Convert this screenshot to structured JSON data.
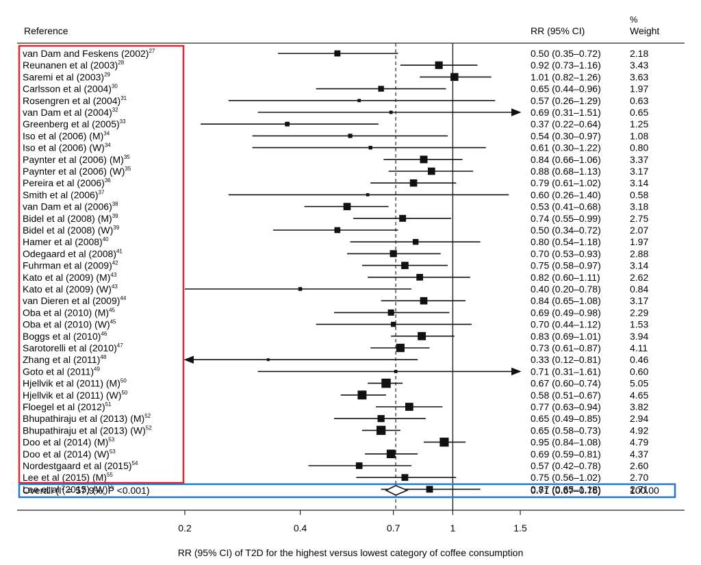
{
  "headers": {
    "reference": "Reference",
    "rr": "RR (95% CI)",
    "weight_pct": "%",
    "weight": "Weight"
  },
  "chart_data": {
    "type": "forest",
    "xlabel": "RR (95% CI) of T2D for the highest versus lowest category of coffee consumption",
    "x_scale": "log",
    "x_ticks": [
      0.2,
      0.4,
      0.7,
      1,
      1.5
    ],
    "x_tick_labels": [
      "0.2",
      "0.4",
      "0.7",
      "1",
      "1.5"
    ],
    "xlim": [
      0.15,
      1.75
    ],
    "null_value": 1,
    "pooled_estimate_line": 0.71,
    "colors": {
      "highlight_refs": "#e8232a",
      "highlight_overall": "#1f78c8",
      "marks": "#111111"
    },
    "studies": [
      {
        "label": "van Dam and Feskens (2002)",
        "sup": "27",
        "rr": 0.5,
        "lo": 0.35,
        "hi": 0.72,
        "ci_text": "0.50 (0.35–0.72)",
        "weight": "2.18"
      },
      {
        "label": "Reunanen et al (2003)",
        "sup": "28",
        "rr": 0.92,
        "lo": 0.73,
        "hi": 1.16,
        "ci_text": "0.92 (0.73–1.16)",
        "weight": "3.43"
      },
      {
        "label": "Saremi et al (2003)",
        "sup": "29",
        "rr": 1.01,
        "lo": 0.82,
        "hi": 1.26,
        "ci_text": "1.01 (0.82–1.26)",
        "weight": "3.63"
      },
      {
        "label": "Carlsson et al (2004)",
        "sup": "30",
        "rr": 0.65,
        "lo": 0.44,
        "hi": 0.96,
        "ci_text": "0.65 (0.44–0.96)",
        "weight": "1.97"
      },
      {
        "label": "Rosengren et al (2004)",
        "sup": "31",
        "rr": 0.57,
        "lo": 0.26,
        "hi": 1.29,
        "ci_text": "0.57 (0.26–1.29)",
        "weight": "0.63"
      },
      {
        "label": "van Dam et al (2004)",
        "sup": "32",
        "rr": 0.69,
        "lo": 0.31,
        "hi": 1.51,
        "ci_text": "0.69 (0.31–1.51)",
        "weight": "0.65"
      },
      {
        "label": "Greenberg et al (2005)",
        "sup": "33",
        "rr": 0.37,
        "lo": 0.22,
        "hi": 0.64,
        "ci_text": "0.37 (0.22–0.64)",
        "weight": "1.25"
      },
      {
        "label": "Iso et al (2006) (M)",
        "sup": "34",
        "rr": 0.54,
        "lo": 0.3,
        "hi": 0.97,
        "ci_text": "0.54 (0.30–0.97)",
        "weight": "1.08"
      },
      {
        "label": "Iso et al (2006) (W)",
        "sup": "34",
        "rr": 0.61,
        "lo": 0.3,
        "hi": 1.22,
        "ci_text": "0.61 (0.30–1.22)",
        "weight": "0.80"
      },
      {
        "label": "Paynter et al (2006) (M)",
        "sup": "35",
        "rr": 0.84,
        "lo": 0.66,
        "hi": 1.06,
        "ci_text": "0.84 (0.66–1.06)",
        "weight": "3.37"
      },
      {
        "label": "Paynter et al (2006) (W)",
        "sup": "35",
        "rr": 0.88,
        "lo": 0.68,
        "hi": 1.13,
        "ci_text": "0.88 (0.68–1.13)",
        "weight": "3.17"
      },
      {
        "label": "Pereira et al (2006)",
        "sup": "36",
        "rr": 0.79,
        "lo": 0.61,
        "hi": 1.02,
        "ci_text": "0.79 (0.61–1.02)",
        "weight": "3.14"
      },
      {
        "label": "Smith et al (2006)",
        "sup": "37",
        "rr": 0.6,
        "lo": 0.26,
        "hi": 1.4,
        "ci_text": "0.60 (0.26–1.40)",
        "weight": "0.58"
      },
      {
        "label": "van Dam et al (2006)",
        "sup": "38",
        "rr": 0.53,
        "lo": 0.41,
        "hi": 0.68,
        "ci_text": "0.53 (0.41–0.68)",
        "weight": "3.18"
      },
      {
        "label": "Bidel et al (2008) (M)",
        "sup": "39",
        "rr": 0.74,
        "lo": 0.55,
        "hi": 0.99,
        "ci_text": "0.74 (0.55–0.99)",
        "weight": "2.75"
      },
      {
        "label": "Bidel et al (2008) (W)",
        "sup": "39",
        "rr": 0.5,
        "lo": 0.34,
        "hi": 0.72,
        "ci_text": "0.50 (0.34–0.72)",
        "weight": "2.07"
      },
      {
        "label": "Hamer et al (2008)",
        "sup": "40",
        "rr": 0.8,
        "lo": 0.54,
        "hi": 1.18,
        "ci_text": "0.80 (0.54–1.18)",
        "weight": "1.97"
      },
      {
        "label": "Odegaard et al (2008)",
        "sup": "41",
        "rr": 0.7,
        "lo": 0.53,
        "hi": 0.93,
        "ci_text": "0.70 (0.53–0.93)",
        "weight": "2.88"
      },
      {
        "label": "Fuhrman et al (2009)",
        "sup": "42",
        "rr": 0.75,
        "lo": 0.58,
        "hi": 0.97,
        "ci_text": "0.75 (0.58–0.97)",
        "weight": "3.14"
      },
      {
        "label": "Kato et al (2009) (M)",
        "sup": "43",
        "rr": 0.82,
        "lo": 0.6,
        "hi": 1.11,
        "ci_text": "0.82 (0.60–1.11)",
        "weight": "2.62"
      },
      {
        "label": "Kato et al (2009) (W)",
        "sup": "43",
        "rr": 0.4,
        "lo": 0.2,
        "hi": 0.78,
        "ci_text": "0.40 (0.20–0.78)",
        "weight": "0.84"
      },
      {
        "label": "van Dieren et al (2009)",
        "sup": "44",
        "rr": 0.84,
        "lo": 0.65,
        "hi": 1.08,
        "ci_text": "0.84 (0.65–1.08)",
        "weight": "3.17"
      },
      {
        "label": "Oba et al (2010) (M)",
        "sup": "45",
        "rr": 0.69,
        "lo": 0.49,
        "hi": 0.98,
        "ci_text": "0.69 (0.49–0.98)",
        "weight": "2.29"
      },
      {
        "label": "Oba et al (2010) (W)",
        "sup": "45",
        "rr": 0.7,
        "lo": 0.44,
        "hi": 1.12,
        "ci_text": "0.70 (0.44–1.12)",
        "weight": "1.53"
      },
      {
        "label": "Boggs et al (2010)",
        "sup": "46",
        "rr": 0.83,
        "lo": 0.69,
        "hi": 1.01,
        "ci_text": "0.83 (0.69–1.01)",
        "weight": "3.94"
      },
      {
        "label": "Sarotorelli et al (2010)",
        "sup": "47",
        "rr": 0.73,
        "lo": 0.61,
        "hi": 0.87,
        "ci_text": "0.73 (0.61–0.87)",
        "weight": "4.11"
      },
      {
        "label": "Zhang et al (2011)",
        "sup": "48",
        "rr": 0.33,
        "lo": 0.12,
        "hi": 0.81,
        "ci_text": "0.33 (0.12–0.81)",
        "weight": "0.46"
      },
      {
        "label": "Goto et al (2011)",
        "sup": "49",
        "rr": 0.71,
        "lo": 0.31,
        "hi": 1.61,
        "ci_text": "0.71 (0.31–1.61)",
        "weight": "0.60"
      },
      {
        "label": "Hjellvik et al (2011) (M)",
        "sup": "50",
        "rr": 0.67,
        "lo": 0.6,
        "hi": 0.74,
        "ci_text": "0.67 (0.60–0.74)",
        "weight": "5.05"
      },
      {
        "label": "Hjellvik et al (2011) (W)",
        "sup": "50",
        "rr": 0.58,
        "lo": 0.51,
        "hi": 0.67,
        "ci_text": "0.58 (0.51–0.67)",
        "weight": "4.65"
      },
      {
        "label": "Floegel et al (2012)",
        "sup": "51",
        "rr": 0.77,
        "lo": 0.63,
        "hi": 0.94,
        "ci_text": "0.77 (0.63–0.94)",
        "weight": "3.82"
      },
      {
        "label": "Bhupathiraju et al (2013) (M)",
        "sup": "52",
        "rr": 0.65,
        "lo": 0.49,
        "hi": 0.85,
        "ci_text": "0.65 (0.49–0.85)",
        "weight": "2.94"
      },
      {
        "label": "Bhupathiraju et al (2013) (W)",
        "sup": "52",
        "rr": 0.65,
        "lo": 0.58,
        "hi": 0.73,
        "ci_text": "0.65 (0.58–0.73)",
        "weight": "4.92"
      },
      {
        "label": "Doo et al (2014) (M)",
        "sup": "53",
        "rr": 0.95,
        "lo": 0.84,
        "hi": 1.08,
        "ci_text": "0.95 (0.84–1.08)",
        "weight": "4.79"
      },
      {
        "label": "Doo et al (2014) (W)",
        "sup": "53",
        "rr": 0.69,
        "lo": 0.59,
        "hi": 0.81,
        "ci_text": "0.69 (0.59–0.81)",
        "weight": "4.37"
      },
      {
        "label": "Nordestgaard et al (2015)",
        "sup": "54",
        "rr": 0.57,
        "lo": 0.42,
        "hi": 0.78,
        "ci_text": "0.57 (0.42–0.78)",
        "weight": "2.60"
      },
      {
        "label": "Lee et al (2015) (M)",
        "sup": "55",
        "rr": 0.75,
        "lo": 0.56,
        "hi": 1.02,
        "ci_text": "0.75 (0.56–1.02)",
        "weight": "2.70"
      },
      {
        "label": "Lee et al (2015) (W)",
        "sup": "55",
        "rr": 0.87,
        "lo": 0.65,
        "hi": 1.18,
        "ci_text": "0.87 (0.65–1.18)",
        "weight": "2.71"
      }
    ],
    "overall": {
      "label_prefix": "Overall (I",
      "label_sup": "2",
      "label_suffix": " = 57.9%, P <0.001)",
      "rr": 0.71,
      "lo": 0.67,
      "hi": 0.76,
      "ci_text": "0.71 (0.67–0.76)",
      "weight": "100.00"
    }
  }
}
